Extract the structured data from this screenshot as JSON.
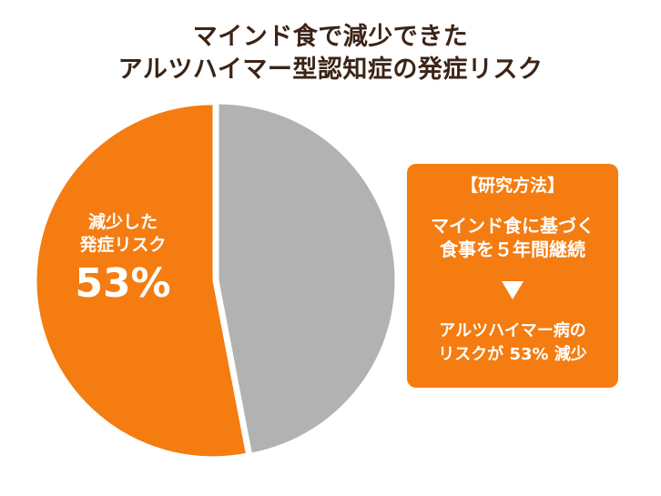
{
  "title": {
    "line1": "マインド食で減少できた",
    "line2": "アルツハイマー型認知症の発症リスク"
  },
  "chart_data": {
    "type": "pie",
    "slices": [
      {
        "label": "減少した発症リスク",
        "value": 53,
        "color": "#f47c11"
      },
      {
        "label": "",
        "value": 47,
        "color": "#b2b2b2"
      }
    ],
    "labels": {
      "line1": "減少した",
      "line2": "発症リスク",
      "value": "53%"
    }
  },
  "info_box": {
    "heading": "【研究方法】",
    "line1": "マインド食に基づく",
    "line2": "食事を５年間継続",
    "arrow_icon": "down-triangle-icon",
    "line3": "アルツハイマー病の",
    "line4": "リスクが 53% 減少"
  },
  "colors": {
    "accent": "#f47c11",
    "gray": "#b2b2b2",
    "title": "#3b2416"
  }
}
